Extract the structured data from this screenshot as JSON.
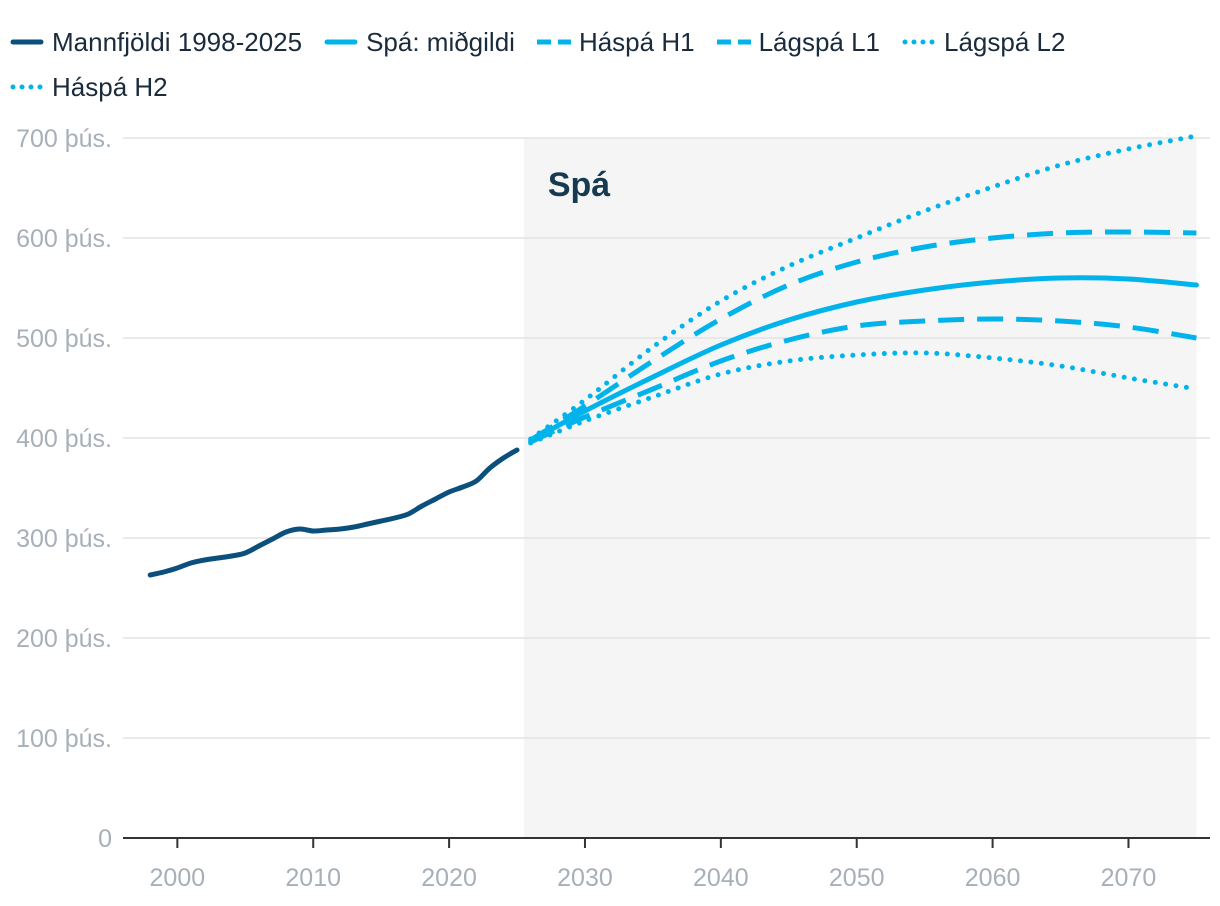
{
  "chart_data": {
    "type": "line",
    "title": "",
    "xlabel": "",
    "ylabel": "",
    "xlim": [
      1996,
      2076
    ],
    "ylim": [
      0,
      700000
    ],
    "x_ticks": [
      2000,
      2010,
      2020,
      2030,
      2040,
      2050,
      2060,
      2070
    ],
    "y_ticks": [
      {
        "value": 0,
        "label": "0"
      },
      {
        "value": 100000,
        "label": "100 þús."
      },
      {
        "value": 200000,
        "label": "200 þús."
      },
      {
        "value": 300000,
        "label": "300 þús."
      },
      {
        "value": 400000,
        "label": "400 þús."
      },
      {
        "value": 500000,
        "label": "500 þús."
      },
      {
        "value": 600000,
        "label": "600 þús."
      },
      {
        "value": 700000,
        "label": "700 þús."
      }
    ],
    "grid": true,
    "legend_position": "top",
    "forecast_region": {
      "label": "Spá",
      "start": 2025.5,
      "end": 2075
    },
    "series": [
      {
        "name": "Mannfjöldi 1998-2025",
        "style": "solid",
        "color": "#0b4f7c",
        "x": [
          1998,
          1999,
          2000,
          2001,
          2002,
          2003,
          2004,
          2005,
          2006,
          2007,
          2008,
          2009,
          2010,
          2011,
          2012,
          2013,
          2014,
          2015,
          2016,
          2017,
          2018,
          2019,
          2020,
          2021,
          2022,
          2023,
          2024,
          2025
        ],
        "values": [
          263000,
          266000,
          270000,
          275000,
          278000,
          280000,
          282000,
          285000,
          292000,
          299000,
          306000,
          309000,
          307000,
          308000,
          309000,
          311000,
          314000,
          317000,
          320000,
          324000,
          332000,
          339000,
          346000,
          351000,
          357000,
          370000,
          380000,
          388000
        ]
      },
      {
        "name": "Spá: miðgildi",
        "style": "solid",
        "color": "#00b4eb",
        "x": [
          2026,
          2030,
          2035,
          2040,
          2045,
          2050,
          2055,
          2060,
          2065,
          2070,
          2075
        ],
        "values": [
          397000,
          427000,
          461000,
          493000,
          518000,
          536000,
          548000,
          556000,
          560000,
          559000,
          553000
        ]
      },
      {
        "name": "Háspá H1",
        "style": "dashed",
        "color": "#00b4eb",
        "x": [
          2026,
          2030,
          2035,
          2040,
          2045,
          2050,
          2055,
          2060,
          2065,
          2070,
          2075
        ],
        "values": [
          398000,
          432000,
          477000,
          519000,
          553000,
          576000,
          591000,
          600000,
          605000,
          606000,
          605000
        ]
      },
      {
        "name": "Lágspá L1",
        "style": "dashed",
        "color": "#00b4eb",
        "x": [
          2026,
          2030,
          2035,
          2040,
          2045,
          2050,
          2055,
          2060,
          2065,
          2070,
          2075
        ],
        "values": [
          396000,
          421000,
          449000,
          477000,
          498000,
          512000,
          517000,
          519000,
          517000,
          511000,
          500000
        ]
      },
      {
        "name": "Lágspá L2",
        "style": "dotted",
        "color": "#00b4eb",
        "x": [
          2026,
          2030,
          2035,
          2040,
          2045,
          2050,
          2055,
          2060,
          2065,
          2070,
          2075
        ],
        "values": [
          395000,
          417000,
          441000,
          464000,
          477000,
          483000,
          485000,
          480000,
          472000,
          460000,
          449000
        ]
      },
      {
        "name": "Háspá H2",
        "style": "dotted",
        "color": "#00b4eb",
        "x": [
          2026,
          2030,
          2035,
          2040,
          2045,
          2050,
          2055,
          2060,
          2065,
          2070,
          2075
        ],
        "values": [
          399000,
          438000,
          491000,
          537000,
          572000,
          600000,
          627000,
          651000,
          673000,
          689000,
          702000
        ]
      }
    ]
  }
}
